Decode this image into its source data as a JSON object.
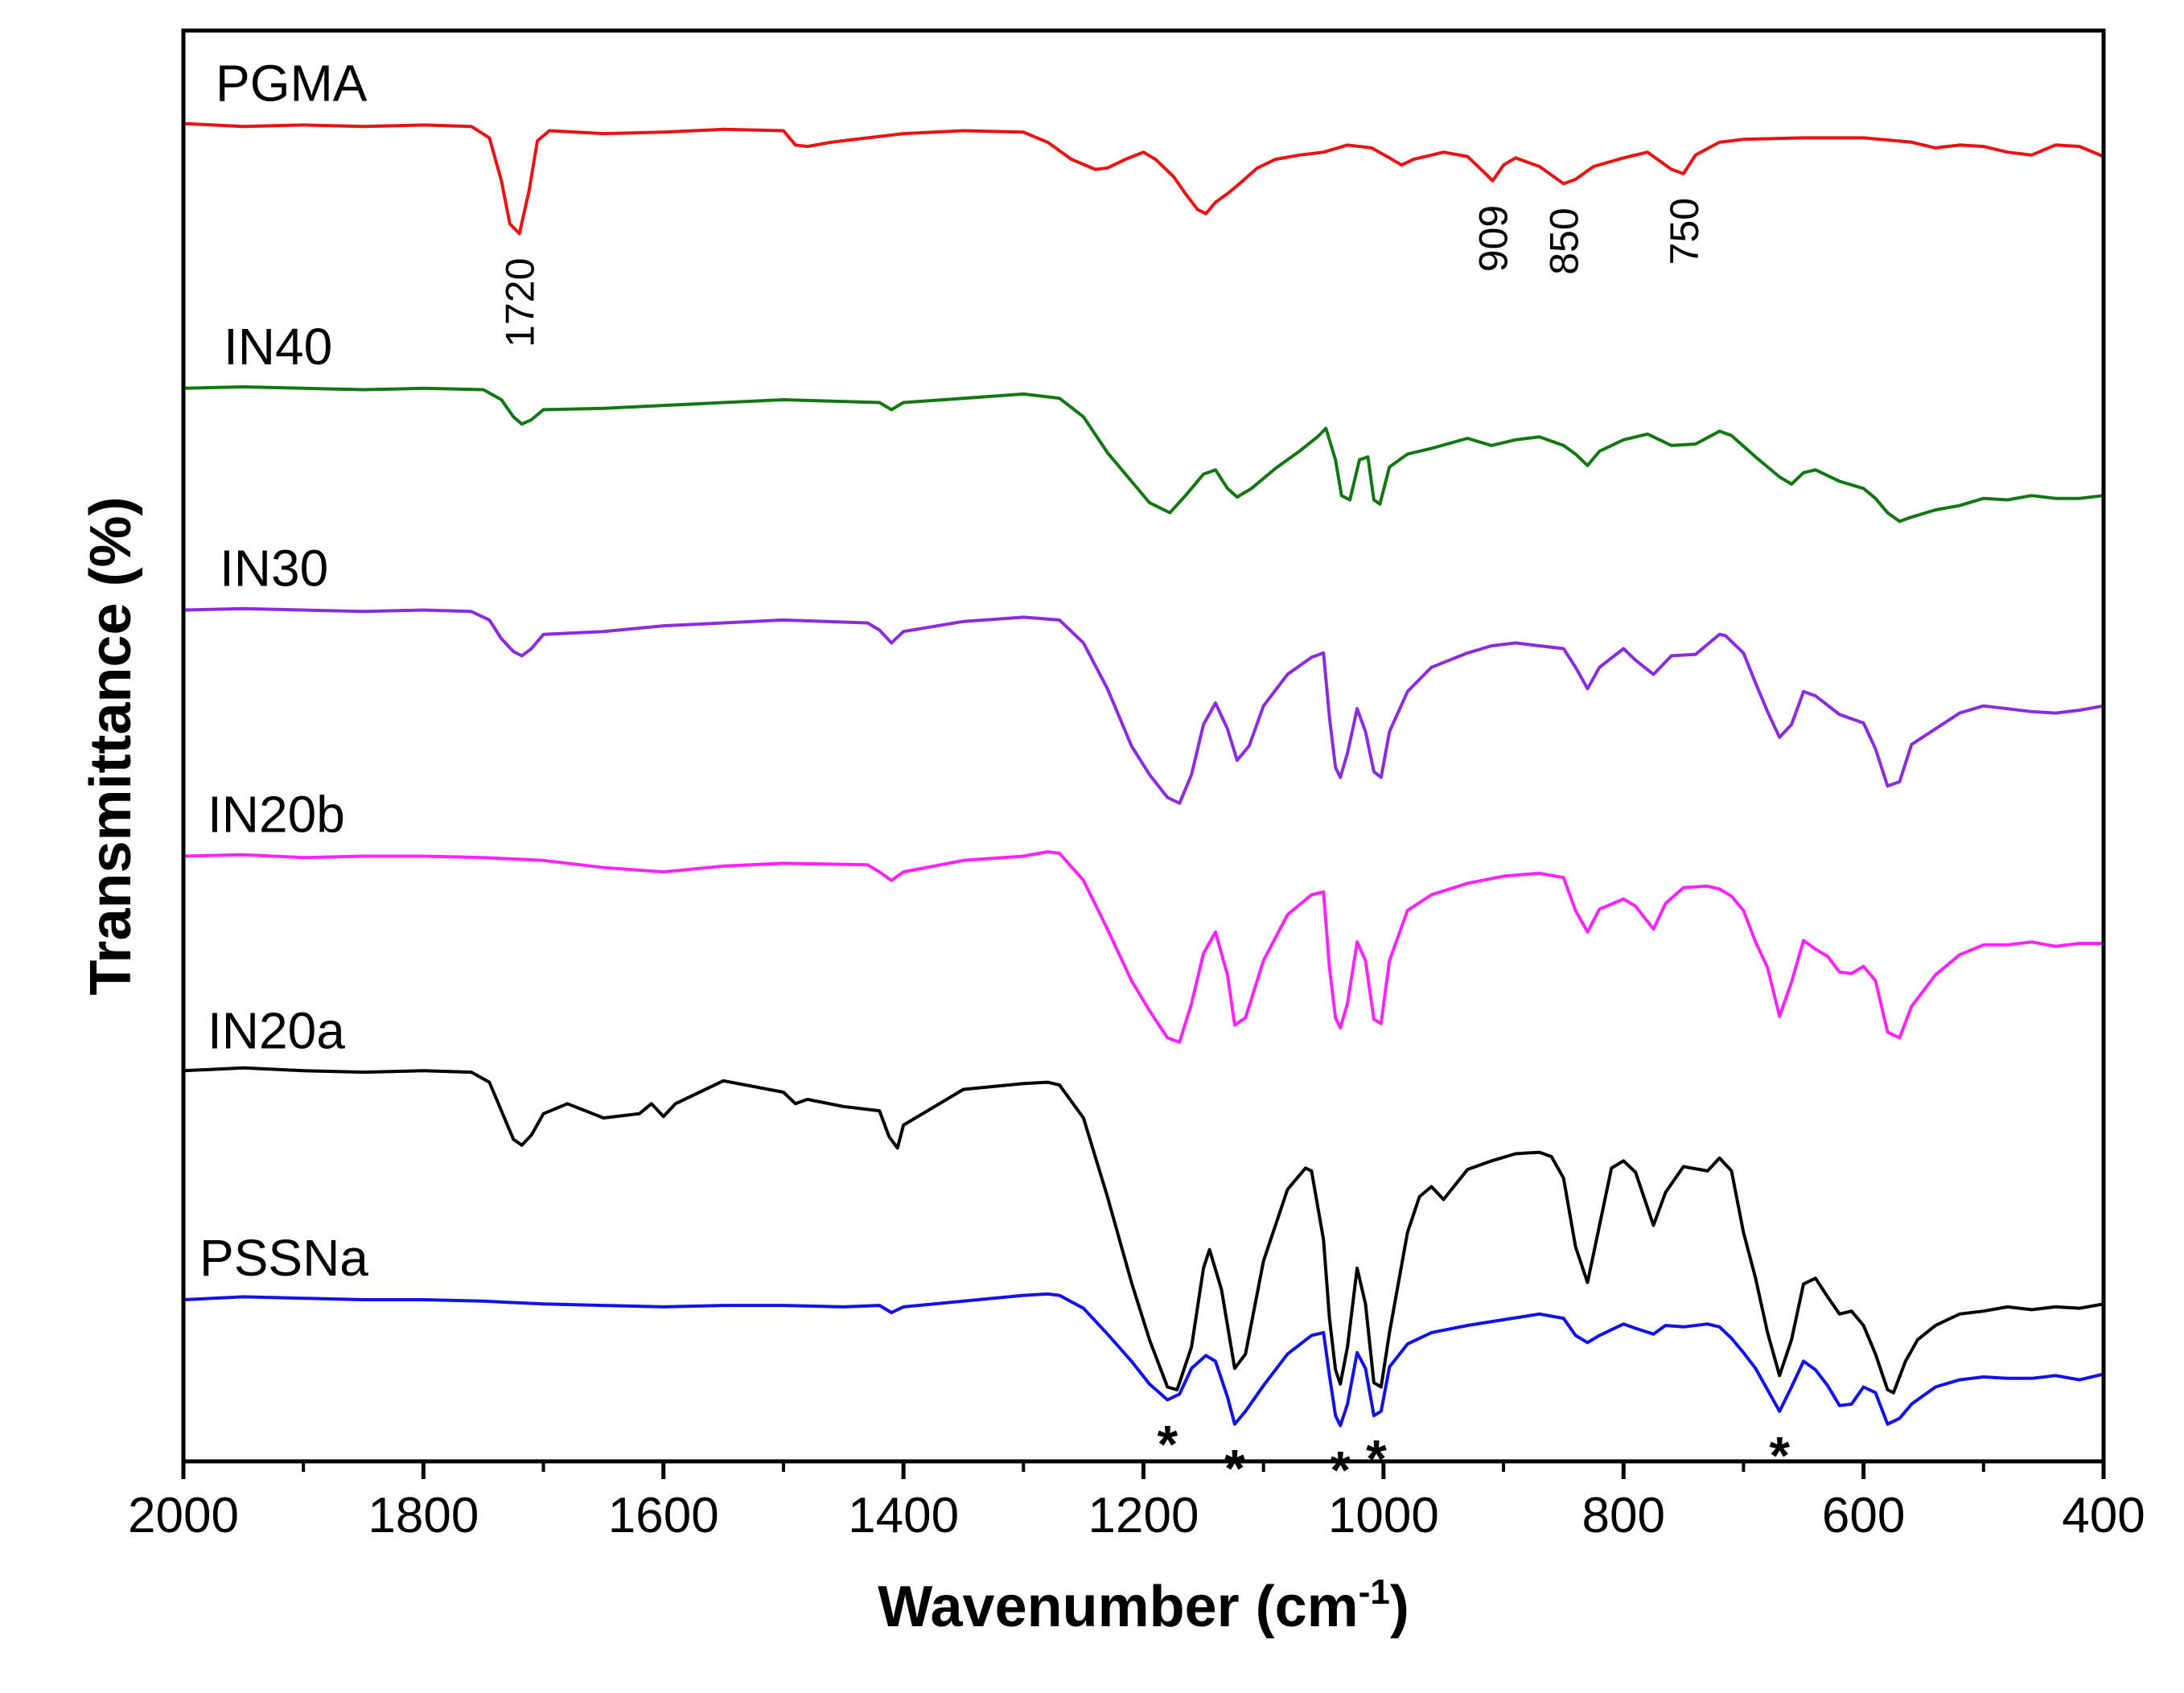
{
  "chart_data": {
    "type": "line",
    "title": "",
    "xlabel": "Wavenumber (cm",
    "xlabel_sup": "-1",
    "xlabel_close": ")",
    "ylabel": "Transmittance (%)",
    "xlim": [
      2000,
      400
    ],
    "x_ticks": [
      2000,
      1800,
      1600,
      1400,
      1200,
      1000,
      800,
      600,
      400
    ],
    "x_tick_labels": [
      "2000",
      "1800",
      "1600",
      "1400",
      "1200",
      "1000",
      "800",
      "600",
      "400"
    ],
    "y_ticks_shown": false,
    "ylim": [
      0,
      100
    ],
    "series": [
      {
        "name": "PGMA",
        "color": "#ee1111",
        "x": [
          2000,
          1950,
          1900,
          1850,
          1800,
          1760,
          1745,
          1735,
          1728,
          1720,
          1712,
          1705,
          1695,
          1650,
          1600,
          1550,
          1500,
          1490,
          1480,
          1460,
          1450,
          1400,
          1350,
          1300,
          1280,
          1260,
          1240,
          1230,
          1215,
          1200,
          1190,
          1175,
          1165,
          1155,
          1148,
          1140,
          1130,
          1120,
          1105,
          1090,
          1070,
          1050,
          1030,
          1010,
          995,
          985,
          975,
          950,
          930,
          915,
          909,
          900,
          890,
          870,
          850,
          840,
          825,
          800,
          780,
          760,
          750,
          740,
          720,
          700,
          650,
          600,
          560,
          540,
          520,
          500,
          480,
          460,
          440,
          420,
          400
        ],
        "y": [
          93.5,
          93.3,
          93.4,
          93.3,
          93.4,
          93.3,
          92.5,
          89.5,
          86.5,
          85.8,
          88.8,
          92.3,
          93.0,
          92.8,
          92.9,
          93.1,
          93.0,
          92.0,
          91.9,
          92.2,
          92.3,
          92.8,
          93.0,
          92.9,
          92.2,
          91.0,
          90.3,
          90.4,
          91.0,
          91.5,
          91.0,
          89.8,
          88.6,
          87.5,
          87.2,
          88.0,
          88.6,
          89.3,
          90.4,
          91.0,
          91.3,
          91.5,
          92.0,
          91.8,
          91.1,
          90.6,
          91.0,
          91.5,
          91.2,
          90.0,
          89.5,
          90.6,
          91.1,
          90.5,
          89.3,
          89.6,
          90.5,
          91.1,
          91.5,
          90.3,
          90.0,
          91.3,
          92.2,
          92.4,
          92.5,
          92.5,
          92.2,
          91.8,
          92.0,
          91.9,
          91.5,
          91.3,
          92.0,
          91.9,
          91.2
        ]
      },
      {
        "name": "IN40",
        "color": "#117711",
        "x": [
          2000,
          1950,
          1900,
          1850,
          1800,
          1750,
          1735,
          1725,
          1718,
          1710,
          1700,
          1650,
          1600,
          1500,
          1420,
          1410,
          1400,
          1350,
          1300,
          1270,
          1250,
          1230,
          1210,
          1195,
          1178,
          1165,
          1150,
          1140,
          1130,
          1122,
          1110,
          1090,
          1070,
          1055,
          1048,
          1040,
          1035,
          1028,
          1020,
          1013,
          1008,
          1003,
          995,
          980,
          960,
          930,
          910,
          890,
          870,
          850,
          840,
          830,
          820,
          800,
          780,
          760,
          740,
          720,
          710,
          690,
          670,
          660,
          650,
          640,
          620,
          600,
          590,
          580,
          570,
          560,
          540,
          520,
          500,
          480,
          460,
          440,
          420,
          400
        ],
        "y": [
          75.0,
          75.1,
          75.0,
          74.9,
          75.0,
          74.9,
          74.2,
          73.0,
          72.5,
          72.8,
          73.5,
          73.6,
          73.8,
          74.2,
          74.0,
          73.5,
          74.0,
          74.3,
          74.6,
          74.3,
          73.0,
          70.5,
          68.5,
          67.0,
          66.3,
          67.5,
          69.0,
          69.3,
          68.0,
          67.4,
          68.0,
          69.4,
          70.6,
          71.6,
          72.2,
          70.0,
          67.5,
          67.2,
          70.0,
          70.2,
          67.2,
          66.9,
          69.5,
          70.4,
          70.8,
          71.5,
          71.0,
          71.4,
          71.6,
          71.0,
          70.4,
          69.6,
          70.6,
          71.4,
          71.8,
          71.0,
          71.1,
          72.0,
          71.7,
          70.2,
          68.8,
          68.3,
          69.1,
          69.3,
          68.5,
          68.0,
          67.3,
          66.3,
          65.7,
          66.0,
          66.5,
          66.8,
          67.3,
          67.2,
          67.5,
          67.3,
          67.3,
          67.5
        ]
      },
      {
        "name": "IN30",
        "color": "#8a2be2",
        "x": [
          2000,
          1950,
          1900,
          1850,
          1800,
          1760,
          1745,
          1735,
          1725,
          1718,
          1710,
          1700,
          1650,
          1600,
          1500,
          1430,
          1420,
          1410,
          1400,
          1350,
          1300,
          1270,
          1250,
          1230,
          1210,
          1195,
          1180,
          1170,
          1160,
          1150,
          1140,
          1130,
          1122,
          1112,
          1100,
          1080,
          1060,
          1050,
          1045,
          1040,
          1036,
          1030,
          1022,
          1015,
          1008,
          1002,
          995,
          980,
          960,
          930,
          910,
          890,
          870,
          850,
          840,
          830,
          820,
          800,
          790,
          775,
          760,
          740,
          720,
          715,
          700,
          690,
          680,
          670,
          660,
          650,
          640,
          620,
          600,
          590,
          580,
          570,
          560,
          540,
          520,
          500,
          480,
          460,
          440,
          420,
          400
        ],
        "y": [
          59.5,
          59.6,
          59.5,
          59.4,
          59.5,
          59.4,
          58.8,
          57.5,
          56.6,
          56.3,
          56.8,
          57.8,
          58.0,
          58.4,
          58.8,
          58.6,
          58.1,
          57.2,
          58.0,
          58.7,
          59.0,
          58.8,
          57.2,
          54.0,
          50.0,
          48.0,
          46.4,
          46.0,
          48.0,
          51.5,
          53.0,
          51.2,
          49.0,
          50.0,
          52.8,
          55.0,
          56.2,
          56.5,
          52.0,
          48.5,
          47.8,
          49.5,
          52.6,
          51.0,
          48.2,
          47.8,
          51.0,
          53.8,
          55.5,
          56.5,
          57.0,
          57.2,
          57.0,
          56.8,
          55.5,
          54.0,
          55.5,
          56.8,
          56.0,
          55.0,
          56.3,
          56.4,
          57.8,
          57.7,
          56.5,
          54.4,
          52.4,
          50.6,
          51.5,
          53.8,
          53.5,
          52.2,
          51.6,
          49.8,
          47.2,
          47.5,
          50.1,
          51.2,
          52.3,
          52.8,
          52.6,
          52.4,
          52.3,
          52.5,
          52.8
        ]
      },
      {
        "name": "IN20b",
        "color": "#ff22ff",
        "x": [
          2000,
          1950,
          1900,
          1850,
          1800,
          1750,
          1700,
          1650,
          1600,
          1550,
          1500,
          1430,
          1420,
          1410,
          1400,
          1350,
          1300,
          1280,
          1270,
          1250,
          1230,
          1210,
          1195,
          1180,
          1170,
          1160,
          1150,
          1140,
          1130,
          1124,
          1115,
          1100,
          1080,
          1060,
          1050,
          1045,
          1040,
          1036,
          1030,
          1022,
          1015,
          1008,
          1002,
          995,
          980,
          960,
          930,
          900,
          870,
          850,
          840,
          830,
          820,
          800,
          790,
          775,
          765,
          750,
          730,
          720,
          710,
          700,
          690,
          680,
          670,
          660,
          650,
          640,
          630,
          620,
          610,
          600,
          590,
          580,
          570,
          560,
          540,
          520,
          500,
          480,
          460,
          440,
          420,
          400
        ],
        "y": [
          42.3,
          42.4,
          42.2,
          42.3,
          42.3,
          42.2,
          42.0,
          41.5,
          41.2,
          41.6,
          41.8,
          41.7,
          41.2,
          40.6,
          41.2,
          42.0,
          42.3,
          42.6,
          42.5,
          40.6,
          37.2,
          33.6,
          31.5,
          29.6,
          29.3,
          32.0,
          35.5,
          37.0,
          34.0,
          30.5,
          31.0,
          35.0,
          38.2,
          39.6,
          39.8,
          34.5,
          31.0,
          30.3,
          32.0,
          36.3,
          35.0,
          30.9,
          30.6,
          35.0,
          38.5,
          39.6,
          40.4,
          40.9,
          41.1,
          40.8,
          38.5,
          37.0,
          38.6,
          39.3,
          38.8,
          37.2,
          39.0,
          40.1,
          40.2,
          40.0,
          39.5,
          38.5,
          36.3,
          34.5,
          31.1,
          33.5,
          36.4,
          35.8,
          35.3,
          34.2,
          34.1,
          34.6,
          33.6,
          30.0,
          29.6,
          31.8,
          34.0,
          35.4,
          36.1,
          36.1,
          36.3,
          36.0,
          36.2,
          36.2
        ]
      },
      {
        "name": "IN20a",
        "color": "#000000",
        "x": [
          2000,
          1950,
          1900,
          1850,
          1800,
          1760,
          1745,
          1735,
          1725,
          1718,
          1710,
          1700,
          1680,
          1650,
          1620,
          1610,
          1600,
          1590,
          1550,
          1500,
          1490,
          1480,
          1450,
          1420,
          1412,
          1405,
          1400,
          1350,
          1300,
          1280,
          1270,
          1250,
          1230,
          1210,
          1195,
          1180,
          1172,
          1160,
          1150,
          1145,
          1135,
          1124,
          1115,
          1100,
          1080,
          1065,
          1060,
          1050,
          1045,
          1040,
          1036,
          1030,
          1022,
          1015,
          1008,
          1002,
          995,
          980,
          970,
          960,
          950,
          930,
          910,
          890,
          870,
          860,
          850,
          840,
          830,
          820,
          810,
          800,
          790,
          775,
          765,
          750,
          730,
          720,
          710,
          700,
          690,
          680,
          670,
          660,
          650,
          640,
          630,
          620,
          610,
          600,
          590,
          580,
          575,
          565,
          555,
          540,
          520,
          500,
          480,
          460,
          440,
          420,
          400
        ],
        "y": [
          27.3,
          27.5,
          27.3,
          27.2,
          27.3,
          27.2,
          26.5,
          24.5,
          22.5,
          22.1,
          22.8,
          24.3,
          25.0,
          24.0,
          24.3,
          25.0,
          24.1,
          25.0,
          26.6,
          25.8,
          25.0,
          25.3,
          24.8,
          24.5,
          22.7,
          21.9,
          23.5,
          26.0,
          26.4,
          26.5,
          26.3,
          24.0,
          18.5,
          12.5,
          8.5,
          5.2,
          5.0,
          8.0,
          13.5,
          14.8,
          12.0,
          6.5,
          7.5,
          14.0,
          19.0,
          20.5,
          20.3,
          15.5,
          10.0,
          6.4,
          5.4,
          8.0,
          13.5,
          11.0,
          5.5,
          5.2,
          9.0,
          16.0,
          18.5,
          19.2,
          18.3,
          20.4,
          21.0,
          21.5,
          21.6,
          21.3,
          19.8,
          15.0,
          12.5,
          16.5,
          20.5,
          21.0,
          20.2,
          16.5,
          18.8,
          20.6,
          20.3,
          21.2,
          20.3,
          16.0,
          12.8,
          9.0,
          6.0,
          8.5,
          12.4,
          12.8,
          11.5,
          10.3,
          10.5,
          9.5,
          7.5,
          5.0,
          4.8,
          7.0,
          8.5,
          9.5,
          10.3,
          10.5,
          10.8,
          10.6,
          10.8,
          10.7,
          11.0
        ]
      },
      {
        "name": "PSSNa",
        "color": "#1111ee",
        "x": [
          2000,
          1950,
          1900,
          1850,
          1800,
          1750,
          1700,
          1650,
          1600,
          1550,
          1500,
          1450,
          1420,
          1410,
          1400,
          1350,
          1300,
          1280,
          1270,
          1250,
          1230,
          1210,
          1195,
          1180,
          1170,
          1160,
          1148,
          1140,
          1130,
          1124,
          1115,
          1100,
          1080,
          1060,
          1050,
          1045,
          1040,
          1036,
          1030,
          1022,
          1015,
          1008,
          1002,
          995,
          980,
          960,
          930,
          900,
          870,
          850,
          840,
          830,
          820,
          800,
          790,
          775,
          765,
          750,
          730,
          720,
          710,
          700,
          690,
          680,
          670,
          660,
          650,
          640,
          630,
          620,
          610,
          600,
          590,
          580,
          570,
          560,
          540,
          520,
          500,
          480,
          460,
          440,
          420,
          400
        ],
        "y": [
          11.3,
          11.5,
          11.4,
          11.3,
          11.3,
          11.2,
          11.0,
          10.9,
          10.8,
          10.9,
          10.9,
          10.8,
          10.9,
          10.4,
          10.8,
          11.2,
          11.6,
          11.7,
          11.6,
          10.7,
          8.9,
          7.0,
          5.4,
          4.3,
          4.7,
          6.5,
          7.4,
          7.0,
          4.5,
          2.6,
          3.5,
          5.3,
          7.5,
          8.8,
          9.0,
          6.0,
          3.2,
          2.5,
          4.0,
          7.6,
          6.5,
          3.2,
          3.5,
          6.6,
          8.2,
          9.0,
          9.5,
          9.9,
          10.3,
          10.0,
          8.8,
          8.3,
          8.8,
          9.6,
          9.3,
          8.9,
          9.5,
          9.4,
          9.6,
          9.4,
          8.6,
          7.6,
          6.5,
          5.0,
          3.5,
          5.2,
          7.0,
          6.4,
          5.3,
          3.9,
          4.0,
          5.2,
          4.8,
          2.6,
          3.0,
          4.0,
          5.2,
          5.7,
          5.9,
          5.8,
          5.8,
          6.0,
          5.7,
          6.1
        ]
      }
    ],
    "series_labels": [
      "PGMA",
      "IN40",
      "IN30",
      "IN20b",
      "IN20a",
      "PSSNa"
    ],
    "annotations": {
      "peaks": [
        {
          "label": "1720",
          "x": 1720
        },
        {
          "label": "909",
          "x": 909
        },
        {
          "label": "850",
          "x": 850
        },
        {
          "label": "750",
          "x": 750
        }
      ],
      "stars": [
        {
          "symbol": "*",
          "x": 1180
        },
        {
          "symbol": "*",
          "x": 1124
        },
        {
          "symbol": "*",
          "x": 1036
        },
        {
          "symbol": "*",
          "x": 1006
        },
        {
          "symbol": "*",
          "x": 670
        }
      ]
    }
  }
}
